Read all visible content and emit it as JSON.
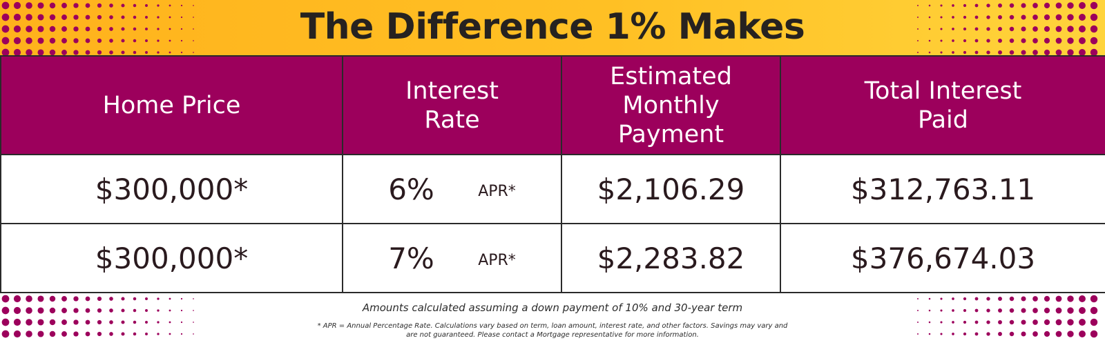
{
  "title": "The Difference 1% Makes",
  "colors": {
    "banner_start": "#ffb21c",
    "banner_end": "#ffd43c",
    "header_bg": "#9c005c",
    "dot_color": "#9c005c",
    "text": "#262220"
  },
  "table": {
    "headers": [
      "Home Price",
      "Interest Rate",
      "Estimated Monthly Payment",
      "Total Interest Paid"
    ],
    "rows": [
      {
        "home_price": "$300,000*",
        "rate": "6%",
        "apr": "APR*",
        "monthly": "$2,106.29",
        "total_interest": "$312,763.11"
      },
      {
        "home_price": "$300,000*",
        "rate": "7%",
        "apr": "APR*",
        "monthly": "$2,283.82",
        "total_interest": "$376,674.03"
      }
    ]
  },
  "footnote": "Amounts calculated assuming a down payment of 10% and 30-year term",
  "disclaimer": "* APR = Annual Percentage Rate. Calculations vary based on term, loan amount, interest rate, and other factors. Savings may vary and are not guaranteed. Please contact a Mortgage representative for more information."
}
